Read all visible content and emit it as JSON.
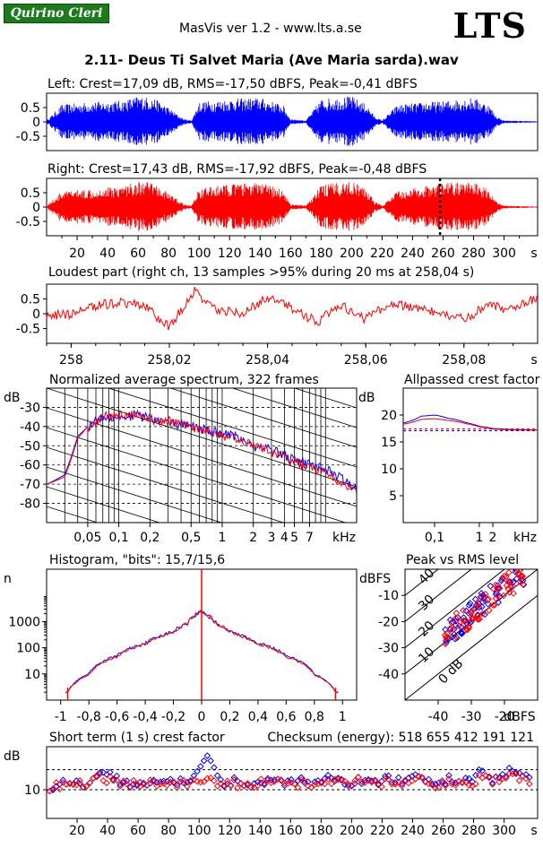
{
  "header": {
    "logo_text": "Quirino Cleri",
    "app_title": "MasVis ver 1.2 - www.lts.a.se",
    "brand": "LTS",
    "file_title": "2.11- Deus Ti Salvet Maria (Ave Maria sarda).wav"
  },
  "colors": {
    "left": "#0000ff",
    "right": "#ff0000",
    "grid": "#000000"
  },
  "chart_data": [
    {
      "type": "area",
      "id": "left",
      "title": "Left: Crest=17,09 dB, RMS=-17,50 dBFS, Peak=-0,41 dBFS",
      "ylim": [
        -1,
        1
      ],
      "yticks": [
        "0.5",
        "0",
        "-0.5"
      ],
      "xlim": [
        0,
        322
      ],
      "envelope_x": [
        0,
        10,
        30,
        50,
        60,
        70,
        80,
        90,
        95,
        100,
        120,
        140,
        155,
        160,
        170,
        180,
        190,
        200,
        210,
        215,
        220,
        230,
        240,
        250,
        260,
        270,
        280,
        290,
        295,
        300,
        322
      ],
      "envelope_y": [
        0.05,
        0.6,
        0.7,
        0.75,
        0.9,
        0.85,
        0.5,
        0.1,
        0.05,
        0.7,
        0.8,
        0.85,
        0.6,
        0.1,
        0.05,
        0.8,
        0.85,
        0.9,
        0.6,
        0.2,
        0.05,
        0.6,
        0.65,
        0.7,
        0.72,
        0.8,
        0.85,
        0.6,
        0.2,
        0.05,
        0.02
      ]
    },
    {
      "type": "area",
      "id": "right",
      "title": "Right: Crest=17,43 dB, RMS=-17,92 dBFS, Peak=-0,48 dBFS",
      "ylim": [
        -1,
        1
      ],
      "yticks": [
        "0.5",
        "0",
        "-0.5"
      ],
      "xlim": [
        0,
        322
      ],
      "xticks": [
        "20",
        "40",
        "60",
        "80",
        "100",
        "120",
        "140",
        "160",
        "180",
        "200",
        "220",
        "240",
        "260",
        "280",
        "300",
        "s"
      ],
      "marker_x": 258.04,
      "envelope_x": [
        0,
        10,
        30,
        50,
        60,
        70,
        80,
        90,
        95,
        100,
        120,
        140,
        155,
        160,
        170,
        180,
        190,
        200,
        210,
        215,
        220,
        230,
        240,
        250,
        260,
        270,
        280,
        290,
        295,
        300,
        322
      ],
      "envelope_y": [
        0.05,
        0.55,
        0.65,
        0.75,
        0.9,
        0.85,
        0.5,
        0.1,
        0.05,
        0.65,
        0.8,
        0.85,
        0.6,
        0.1,
        0.05,
        0.75,
        0.85,
        0.9,
        0.6,
        0.2,
        0.05,
        0.55,
        0.65,
        0.75,
        0.85,
        0.85,
        0.85,
        0.6,
        0.2,
        0.05,
        0.02
      ]
    },
    {
      "type": "line",
      "id": "loudest",
      "title": "Loudest part (right ch, 13 samples >95% during 20 ms at 258,04 s)",
      "ylim": [
        -1,
        1
      ],
      "yticks": [
        "0.5",
        "0",
        "-0.5"
      ],
      "xlim": [
        257.995,
        258.095
      ],
      "xticks": [
        "258",
        "258,02",
        "258,04",
        "258,06",
        "258,08",
        "s"
      ],
      "x": [
        257.995,
        258.0,
        258.005,
        258.01,
        258.015,
        258.02,
        258.025,
        258.03,
        258.035,
        258.04,
        258.045,
        258.05,
        258.055,
        258.06,
        258.065,
        258.07,
        258.075,
        258.08,
        258.085,
        258.09,
        258.095
      ],
      "y": [
        -0.1,
        0.0,
        0.3,
        0.4,
        0.3,
        -0.5,
        0.8,
        0.1,
        0.0,
        0.6,
        0.2,
        -0.3,
        0.3,
        -0.2,
        0.4,
        0.2,
        0.0,
        -0.2,
        0.3,
        0.1,
        0.6
      ]
    },
    {
      "type": "line",
      "id": "spectrum",
      "title": "Normalized average spectrum, 322 frames",
      "ylabel": "dB",
      "xlabel": "kHz",
      "log_x": true,
      "xlim": [
        0.02,
        20
      ],
      "ylim": [
        -90,
        -20
      ],
      "yticks": [
        "-30",
        "-40",
        "-50",
        "-60",
        "-70",
        "-80"
      ],
      "xticks": [
        "0,05",
        "0,1",
        "0,2",
        "0,5",
        "1",
        "2",
        "3",
        "4",
        "5",
        "7"
      ],
      "series": [
        {
          "x": [
            0.02,
            0.03,
            0.04,
            0.05,
            0.07,
            0.1,
            0.15,
            0.2,
            0.3,
            0.5,
            0.7,
            1,
            1.5,
            2,
            3,
            4,
            5,
            7,
            10,
            15,
            20
          ],
          "y": [
            -70,
            -65,
            -45,
            -40,
            -35,
            -35,
            -34,
            -36,
            -38,
            -40,
            -42,
            -44,
            -46,
            -50,
            -52,
            -55,
            -58,
            -60,
            -62,
            -68,
            -72
          ]
        },
        {
          "x": [
            0.02,
            0.03,
            0.04,
            0.05,
            0.07,
            0.1,
            0.15,
            0.2,
            0.3,
            0.5,
            0.7,
            1,
            1.5,
            2,
            3,
            4,
            5,
            7,
            10,
            15,
            20
          ],
          "y": [
            -70,
            -66,
            -46,
            -40,
            -35,
            -34,
            -33,
            -36,
            -37,
            -40,
            -42,
            -45,
            -47,
            -50,
            -53,
            -56,
            -59,
            -61,
            -64,
            -70,
            -74
          ]
        }
      ]
    },
    {
      "type": "line",
      "id": "crest-allpassed",
      "title": "Allpassed crest factor",
      "ylabel": "dB",
      "xlabel": "kHz",
      "log_x": true,
      "xlim": [
        0.02,
        20
      ],
      "ylim": [
        0,
        25
      ],
      "yticks": [
        "20",
        "15",
        "10",
        "5"
      ],
      "xticks": [
        "0,1",
        "1",
        "2"
      ],
      "ref_lines": [
        17.09,
        17.43
      ],
      "series": [
        {
          "x": [
            0.02,
            0.05,
            0.1,
            0.2,
            0.5,
            1,
            2,
            5,
            20
          ],
          "y": [
            18.5,
            19.8,
            20.0,
            19.4,
            18.6,
            17.9,
            17.5,
            17.3,
            17.2
          ]
        },
        {
          "x": [
            0.02,
            0.05,
            0.1,
            0.2,
            0.5,
            1,
            2,
            5,
            20
          ],
          "y": [
            18.3,
            19.2,
            19.3,
            19.0,
            18.4,
            17.8,
            17.4,
            17.2,
            17.2
          ]
        }
      ]
    },
    {
      "type": "line",
      "id": "histogram",
      "title": "Histogram, \"bits\": 15,7/15,6",
      "ylabel": "n",
      "log_y": true,
      "xlim": [
        -1.1,
        1.1
      ],
      "ylim": [
        1,
        100000
      ],
      "yticks": [
        "1000",
        "100",
        "10"
      ],
      "xticks": [
        "-1",
        "-0,8",
        "-0,6",
        "-0,4",
        "-0,2",
        "0",
        "0,2",
        "0,4",
        "0,6",
        "0,8",
        "1"
      ],
      "series": [
        {
          "x": [
            -0.95,
            -0.8,
            -0.6,
            -0.4,
            -0.2,
            -0.1,
            0,
            0.1,
            0.2,
            0.4,
            0.6,
            0.8,
            0.95
          ],
          "y": [
            2,
            10,
            50,
            150,
            400,
            900,
            2500,
            900,
            400,
            150,
            50,
            10,
            2
          ]
        },
        {
          "x": [
            -0.95,
            -0.8,
            -0.6,
            -0.4,
            -0.2,
            -0.1,
            0,
            0.1,
            0.2,
            0.4,
            0.6,
            0.8,
            0.95
          ],
          "y": [
            2,
            9,
            45,
            140,
            380,
            850,
            2400,
            850,
            380,
            140,
            45,
            9,
            2
          ]
        }
      ]
    },
    {
      "type": "scatter",
      "id": "peak-rms",
      "title": "Peak vs RMS level",
      "ylabel": "dBFS",
      "xlabel": "dBFS",
      "xlim": [
        -50,
        -10
      ],
      "ylim": [
        -50,
        0
      ],
      "yticks": [
        "-10",
        "-20",
        "-30",
        "-40"
      ],
      "xticks": [
        "-40",
        "-30",
        "-20"
      ],
      "diag_labels": [
        "40",
        "30",
        "20",
        "10",
        "0 dB"
      ],
      "series": [
        {
          "x": [
            -42,
            -38,
            -35,
            -32,
            -30,
            -28,
            -26,
            -25,
            -24,
            -23,
            -22,
            -21,
            -20,
            -19,
            -18,
            -17,
            -16,
            -15,
            -22,
            -27,
            -30,
            -18,
            -20
          ],
          "y": [
            -38,
            -31,
            -27,
            -25,
            -22,
            -20,
            -18,
            -16,
            -14,
            -13,
            -12,
            -10,
            -10,
            -8,
            -7,
            -6,
            -5,
            -4,
            -9,
            -15,
            -18,
            -5,
            -12
          ]
        },
        {
          "x": [
            -40,
            -36,
            -34,
            -31,
            -29,
            -27,
            -25,
            -24,
            -23,
            -22,
            -21,
            -20,
            -19,
            -18,
            -17,
            -16,
            -15,
            -21,
            -26,
            -29,
            -19
          ],
          "y": [
            -36,
            -30,
            -26,
            -24,
            -21,
            -19,
            -17,
            -15,
            -13,
            -12,
            -11,
            -10,
            -9,
            -7,
            -6,
            -5,
            -4,
            -8,
            -14,
            -17,
            -6
          ]
        }
      ]
    },
    {
      "type": "scatter",
      "id": "short-term-crest",
      "title": "Short term (1 s) crest factor",
      "checksum_text": "Checksum (energy):   518 655 412 191 121",
      "ylabel": "dB",
      "xlim": [
        0,
        322
      ],
      "ylim": [
        0,
        25
      ],
      "yticks": [
        "10"
      ],
      "xticks": [
        "20",
        "40",
        "60",
        "80",
        "100",
        "120",
        "140",
        "160",
        "180",
        "200",
        "220",
        "240",
        "260",
        "280",
        "300",
        "s"
      ],
      "ref_lines": [
        10,
        17
      ],
      "series": [
        {
          "x": [
            5,
            15,
            25,
            35,
            45,
            55,
            65,
            75,
            85,
            95,
            105,
            115,
            125,
            135,
            145,
            155,
            165,
            175,
            185,
            195,
            205,
            215,
            225,
            235,
            245,
            255,
            265,
            275,
            285,
            295,
            305,
            315
          ],
          "y": [
            11,
            13,
            12,
            16,
            14,
            12,
            13,
            12,
            13,
            12,
            21,
            12,
            13,
            12,
            13,
            12,
            13,
            12,
            14,
            12,
            13,
            12,
            14,
            13,
            15,
            12,
            14,
            13,
            16,
            13,
            17,
            14
          ]
        },
        {
          "x": [
            5,
            15,
            25,
            35,
            45,
            55,
            65,
            75,
            85,
            95,
            105,
            115,
            125,
            135,
            145,
            155,
            165,
            175,
            185,
            195,
            205,
            215,
            225,
            235,
            245,
            255,
            265,
            275,
            285,
            295,
            305,
            315
          ],
          "y": [
            11,
            12,
            12,
            14,
            13,
            12,
            13,
            12,
            12,
            12,
            13,
            12,
            12,
            12,
            13,
            12,
            12,
            12,
            13,
            12,
            13,
            12,
            13,
            12,
            14,
            12,
            13,
            12,
            14,
            13,
            15,
            13
          ]
        }
      ]
    }
  ]
}
